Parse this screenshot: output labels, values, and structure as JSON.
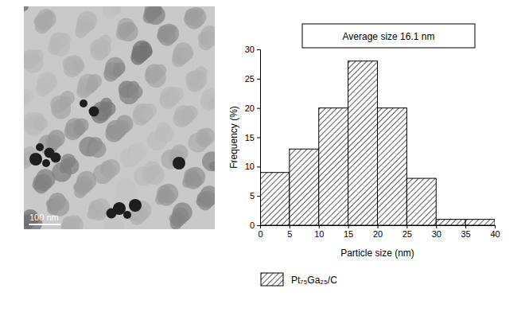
{
  "chart_data": {
    "type": "histogram",
    "title": "Average size 16.1 nm",
    "x_label": "Particle size (nm)",
    "y_label": "Frequency (%)",
    "bins": [
      0,
      5,
      10,
      15,
      20,
      25,
      30,
      35,
      40
    ],
    "series": [
      {
        "name": "Pt₇₅Ga₂₅/C",
        "color": "#000000",
        "values": [
          9,
          13,
          20,
          28,
          20,
          8,
          1,
          1
        ]
      }
    ],
    "xlim": [
      0,
      40
    ],
    "xticks": [
      0,
      5,
      10,
      15,
      20,
      25,
      30,
      35,
      40
    ],
    "ylim": [
      0,
      30
    ],
    "yticks": [
      0,
      5,
      10,
      15,
      20,
      25,
      30
    ],
    "grid": false,
    "legend": "bottom left"
  },
  "micrograph": {
    "scale_bar_label": "100 nm"
  }
}
